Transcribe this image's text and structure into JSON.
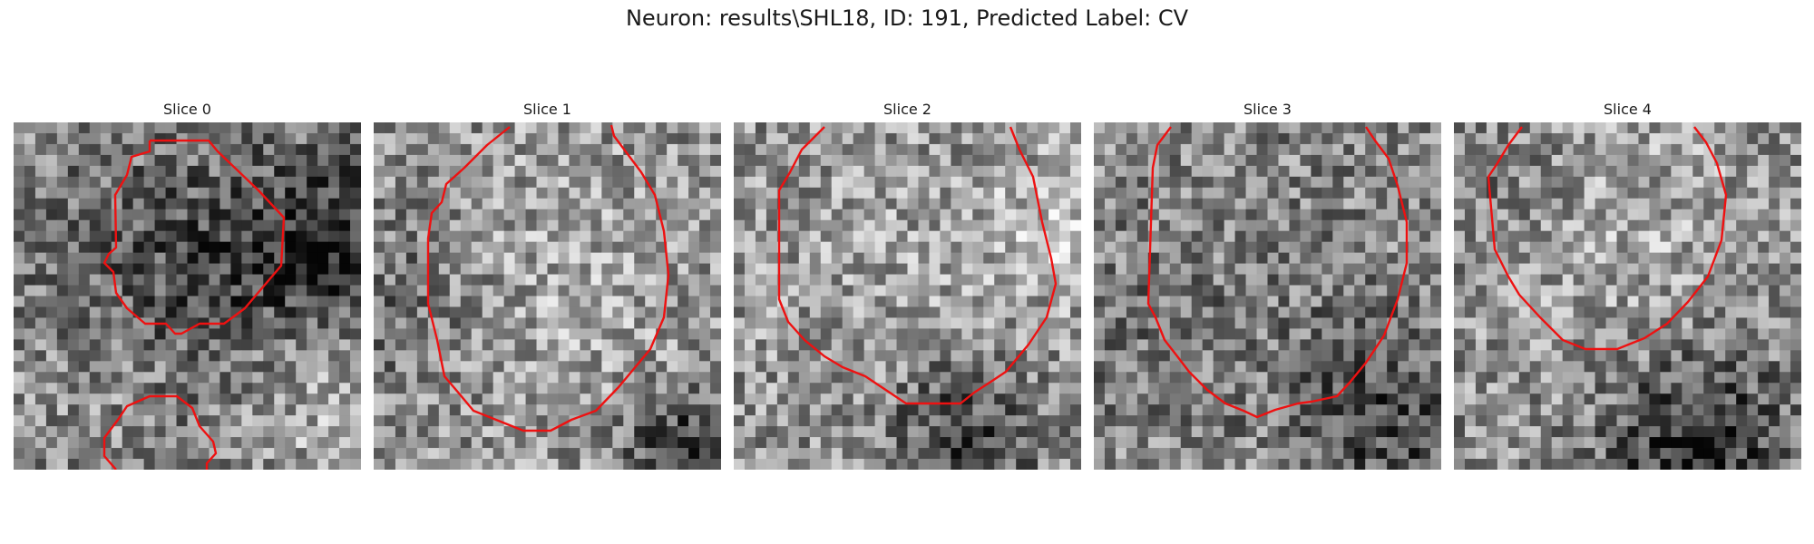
{
  "figure": {
    "title": "Neuron: results\\SHL18, ID: 191, Predicted Label: CV"
  },
  "contour_color": "#ee1111",
  "slices": [
    {
      "label": "Slice 0",
      "seed": 11,
      "blurs": [
        [
          0.5,
          0.52,
          -0.6,
          0.32
        ],
        [
          0.93,
          0.35,
          -0.75,
          0.18
        ],
        [
          0.28,
          0.72,
          0.35,
          0.18
        ],
        [
          0.85,
          0.78,
          0.45,
          0.2
        ]
      ]
    },
    {
      "label": "Slice 1",
      "seed": 23,
      "blurs": [
        [
          0.9,
          0.95,
          -0.8,
          0.12
        ],
        [
          0.5,
          0.45,
          0.25,
          0.35
        ],
        [
          0.05,
          0.5,
          -0.35,
          0.2
        ]
      ]
    },
    {
      "label": "Slice 2",
      "seed": 37,
      "blurs": [
        [
          0.65,
          0.9,
          -0.7,
          0.15
        ],
        [
          0.5,
          0.45,
          0.2,
          0.35
        ],
        [
          0.95,
          0.3,
          0.4,
          0.15
        ]
      ]
    },
    {
      "label": "Slice 3",
      "seed": 41,
      "blurs": [
        [
          0.85,
          0.85,
          -0.6,
          0.2
        ],
        [
          0.55,
          0.4,
          -0.1,
          0.3
        ],
        [
          0.1,
          0.6,
          -0.2,
          0.2
        ]
      ]
    },
    {
      "label": "Slice 4",
      "seed": 53,
      "blurs": [
        [
          0.7,
          0.92,
          -0.9,
          0.18
        ],
        [
          0.5,
          0.35,
          0.25,
          0.3
        ],
        [
          0.15,
          0.2,
          -0.2,
          0.15
        ]
      ]
    }
  ]
}
